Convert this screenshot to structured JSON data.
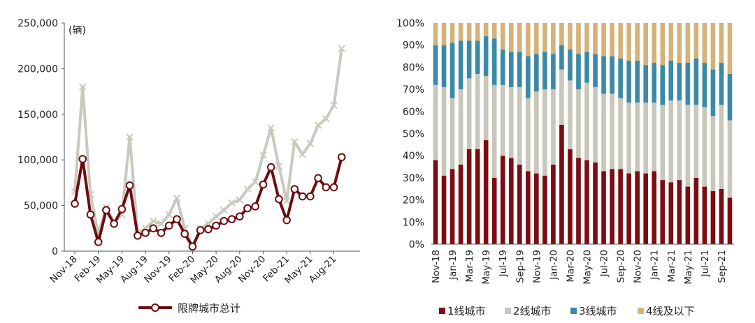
{
  "chart_data": [
    {
      "type": "line",
      "unit_label": "(辆)",
      "yticks": [
        "0",
        "50,000",
        "100,000",
        "150,000",
        "200,000",
        "250,000"
      ],
      "ylim": [
        0,
        250000
      ],
      "xtick_labels": [
        "Nov-18",
        "Feb-19",
        "May-19",
        "Aug-19",
        "Nov-19",
        "Feb-20",
        "May-20",
        "Aug-20",
        "Nov-20",
        "Feb-21",
        "May-21",
        "Aug-21"
      ],
      "x": [
        "Nov-18",
        "Dec-18",
        "Jan-19",
        "Feb-19",
        "Mar-19",
        "Apr-19",
        "May-19",
        "Jun-19",
        "Jul-19",
        "Aug-19",
        "Sep-19",
        "Oct-19",
        "Nov-19",
        "Dec-19",
        "Jan-20",
        "Feb-20",
        "Mar-20",
        "Apr-20",
        "May-20",
        "Jun-20",
        "Jul-20",
        "Aug-20",
        "Sep-20",
        "Oct-20",
        "Nov-20",
        "Dec-20",
        "Jan-21",
        "Feb-21",
        "Mar-21",
        "Apr-21",
        "May-21",
        "Jun-21",
        "Jul-21",
        "Aug-21",
        "Sep-21",
        "Oct-21"
      ],
      "series": [
        {
          "name": "限牌城市总计",
          "color": "#6b0d10",
          "marker": "circle",
          "values": [
            52000,
            101000,
            40000,
            10000,
            45000,
            30000,
            46000,
            72000,
            17000,
            20000,
            25000,
            20000,
            28000,
            35000,
            19000,
            5000,
            23000,
            24000,
            28000,
            33000,
            35000,
            38000,
            47000,
            49000,
            73000,
            92000,
            57000,
            34000,
            68000,
            60000,
            60000,
            80000,
            70000,
            70000,
            103000,
            null
          ]
        },
        {
          "color": "#c9c9bd",
          "marker": "cross",
          "values": [
            65000,
            180000,
            62000,
            18000,
            48000,
            32000,
            40000,
            125000,
            20000,
            25000,
            33000,
            30000,
            40000,
            58000,
            25000,
            5000,
            25000,
            30000,
            38000,
            45000,
            53000,
            56000,
            68000,
            76000,
            105000,
            135000,
            93000,
            55000,
            120000,
            106000,
            118000,
            138000,
            145000,
            160000,
            222000,
            null
          ]
        }
      ]
    },
    {
      "type": "bar",
      "stacked": true,
      "yticks": [
        "0%",
        "10%",
        "20%",
        "30%",
        "40%",
        "50%",
        "60%",
        "70%",
        "80%",
        "90%",
        "100%"
      ],
      "ylim": [
        0,
        100
      ],
      "xtick_labels": [
        "Nov-18",
        "Jan-19",
        "Mar-19",
        "May-19",
        "Jul-19",
        "Sep-19",
        "Nov-19",
        "Jan-20",
        "Mar-20",
        "May-20",
        "Jul-20",
        "Sep-20",
        "Nov-20",
        "Jan-21",
        "Mar-21",
        "May-21",
        "Jul-21",
        "Sep-21"
      ],
      "categories": [
        "Nov-18",
        "Dec-18",
        "Jan-19",
        "Feb-19",
        "Mar-19",
        "Apr-19",
        "May-19",
        "Jun-19",
        "Jul-19",
        "Aug-19",
        "Sep-19",
        "Oct-19",
        "Nov-19",
        "Dec-19",
        "Jan-20",
        "Feb-20",
        "Mar-20",
        "Apr-20",
        "May-20",
        "Jun-20",
        "Jul-20",
        "Aug-20",
        "Sep-20",
        "Oct-20",
        "Nov-20",
        "Dec-20",
        "Jan-21",
        "Feb-21",
        "Mar-21",
        "Apr-21",
        "May-21",
        "Jun-21",
        "Jul-21",
        "Aug-21",
        "Sep-21",
        "Oct-21"
      ],
      "series": [
        {
          "name": "1线城市",
          "color": "#7d0c12",
          "values": [
            38,
            31,
            34,
            36,
            43,
            43,
            47,
            30,
            40,
            39,
            36,
            33,
            32,
            31,
            36,
            54,
            43,
            39,
            38,
            37,
            33,
            34,
            34,
            32,
            33,
            32,
            33,
            29,
            28,
            29,
            26,
            30,
            26,
            24,
            25,
            21
          ]
        },
        {
          "name": "2线城市",
          "color": "#c8c7ba",
          "values": [
            34,
            40,
            32,
            34,
            32,
            34,
            29,
            42,
            32,
            32,
            35,
            33,
            37,
            39,
            34,
            25,
            31,
            31,
            35,
            34,
            35,
            34,
            32,
            32,
            31,
            32,
            31,
            34,
            37,
            36,
            37,
            33,
            36,
            34,
            38,
            35
          ]
        },
        {
          "name": "3线城市",
          "color": "#3a8aa6",
          "values": [
            18,
            19,
            25,
            22,
            17,
            15,
            18,
            21,
            16,
            16,
            16,
            19,
            17,
            17,
            16,
            11,
            14,
            16,
            14,
            15,
            17,
            17,
            18,
            19,
            19,
            17,
            18,
            18,
            18,
            17,
            19,
            21,
            20,
            21,
            19,
            21
          ]
        },
        {
          "name": "4线及以下",
          "color": "#d4b37a",
          "values": [
            10,
            10,
            9,
            8,
            8,
            8,
            6,
            7,
            12,
            13,
            13,
            15,
            14,
            13,
            14,
            10,
            12,
            14,
            13,
            14,
            15,
            15,
            16,
            17,
            17,
            19,
            18,
            19,
            17,
            18,
            18,
            16,
            18,
            21,
            18,
            23
          ]
        }
      ]
    }
  ]
}
